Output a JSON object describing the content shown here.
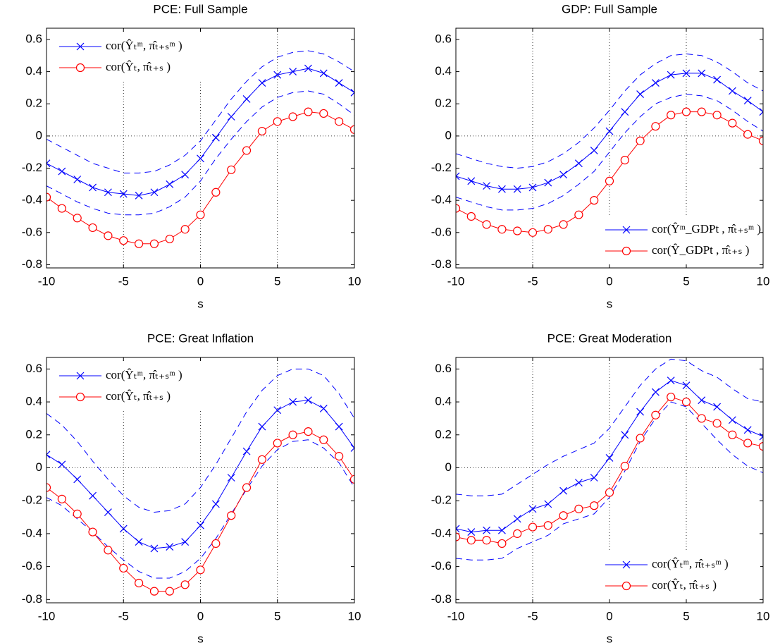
{
  "chart_data": [
    {
      "type": "line",
      "title": "PCE: Full Sample",
      "xlabel": "s",
      "x": [
        -10,
        -9,
        -8,
        -7,
        -6,
        -5,
        -4,
        -3,
        -2,
        -1,
        0,
        1,
        2,
        3,
        4,
        5,
        6,
        7,
        8,
        9,
        10
      ],
      "xlim": [
        -10,
        10
      ],
      "xticks": [
        -10,
        -5,
        0,
        5,
        10
      ],
      "ylim": [
        -0.82,
        0.67
      ],
      "yticks": [
        -0.8,
        -0.6,
        -0.4,
        -0.2,
        0,
        0.2,
        0.4,
        0.6
      ],
      "vlines": [
        -5,
        0,
        5
      ],
      "hlines": [
        0
      ],
      "legend": "upper left",
      "series": [
        {
          "name": "cor(Ŷₜᵐ, π̂ₜ₊ₛᵐ )",
          "color": "#0000ff",
          "marker": "x",
          "values": [
            -0.17,
            -0.22,
            -0.27,
            -0.32,
            -0.35,
            -0.36,
            -0.37,
            -0.35,
            -0.3,
            -0.24,
            -0.14,
            -0.01,
            0.12,
            0.23,
            0.33,
            0.38,
            0.4,
            0.42,
            0.39,
            0.33,
            0.27
          ]
        },
        {
          "name": "cor(Ŷₜ, π̂ₜ₊ₛ )",
          "color": "#ff0000",
          "marker": "o",
          "values": [
            -0.38,
            -0.45,
            -0.51,
            -0.57,
            -0.62,
            -0.65,
            -0.67,
            -0.67,
            -0.64,
            -0.58,
            -0.49,
            -0.35,
            -0.21,
            -0.09,
            0.03,
            0.09,
            0.12,
            0.15,
            0.14,
            0.09,
            0.04
          ]
        }
      ],
      "band": {
        "color": "#0000ff",
        "upper": [
          -0.02,
          -0.07,
          -0.12,
          -0.17,
          -0.2,
          -0.23,
          -0.23,
          -0.22,
          -0.18,
          -0.12,
          -0.03,
          0.1,
          0.23,
          0.34,
          0.43,
          0.49,
          0.52,
          0.53,
          0.51,
          0.46,
          0.4
        ],
        "lower": [
          -0.31,
          -0.36,
          -0.41,
          -0.45,
          -0.48,
          -0.49,
          -0.49,
          -0.48,
          -0.44,
          -0.38,
          -0.28,
          -0.14,
          -0.02,
          0.09,
          0.18,
          0.24,
          0.27,
          0.28,
          0.26,
          0.2,
          0.13
        ]
      }
    },
    {
      "type": "line",
      "title": "GDP: Full Sample",
      "xlabel": "s",
      "x": [
        -10,
        -9,
        -8,
        -7,
        -6,
        -5,
        -4,
        -3,
        -2,
        -1,
        0,
        1,
        2,
        3,
        4,
        5,
        6,
        7,
        8,
        9,
        10
      ],
      "xlim": [
        -10,
        10
      ],
      "xticks": [
        -10,
        -5,
        0,
        5,
        10
      ],
      "ylim": [
        -0.82,
        0.67
      ],
      "yticks": [
        -0.8,
        -0.6,
        -0.4,
        -0.2,
        0,
        0.2,
        0.4,
        0.6
      ],
      "vlines": [
        -5,
        0,
        5
      ],
      "hlines": [
        0
      ],
      "legend": "lower right",
      "series": [
        {
          "name": "cor(Ŷᵐ_GDPt , π̂ₜ₊ₛᵐ )",
          "color": "#0000ff",
          "marker": "x",
          "values": [
            -0.25,
            -0.28,
            -0.31,
            -0.33,
            -0.33,
            -0.32,
            -0.29,
            -0.24,
            -0.17,
            -0.09,
            0.03,
            0.15,
            0.26,
            0.33,
            0.38,
            0.39,
            0.39,
            0.35,
            0.28,
            0.22,
            0.15
          ]
        },
        {
          "name": "cor(Ŷ_GDPt , π̂ₜ₊ₛ )",
          "color": "#ff0000",
          "marker": "o",
          "values": [
            -0.45,
            -0.5,
            -0.55,
            -0.58,
            -0.59,
            -0.6,
            -0.58,
            -0.55,
            -0.49,
            -0.4,
            -0.28,
            -0.15,
            -0.03,
            0.06,
            0.13,
            0.15,
            0.15,
            0.13,
            0.08,
            0.01,
            -0.03
          ]
        }
      ],
      "band": {
        "color": "#0000ff",
        "upper": [
          -0.11,
          -0.14,
          -0.17,
          -0.19,
          -0.2,
          -0.19,
          -0.16,
          -0.11,
          -0.04,
          0.05,
          0.16,
          0.28,
          0.38,
          0.45,
          0.5,
          0.51,
          0.5,
          0.46,
          0.4,
          0.33,
          0.28
        ],
        "lower": [
          -0.38,
          -0.41,
          -0.44,
          -0.46,
          -0.46,
          -0.45,
          -0.42,
          -0.37,
          -0.3,
          -0.22,
          -0.1,
          0.02,
          0.12,
          0.2,
          0.24,
          0.26,
          0.25,
          0.22,
          0.16,
          0.09,
          0.03
        ]
      }
    },
    {
      "type": "line",
      "title": "PCE: Great Inflation",
      "xlabel": "s",
      "x": [
        -10,
        -9,
        -8,
        -7,
        -6,
        -5,
        -4,
        -3,
        -2,
        -1,
        0,
        1,
        2,
        3,
        4,
        5,
        6,
        7,
        8,
        9,
        10
      ],
      "xlim": [
        -10,
        10
      ],
      "xticks": [
        -10,
        -5,
        0,
        5,
        10
      ],
      "ylim": [
        -0.82,
        0.67
      ],
      "yticks": [
        -0.8,
        -0.6,
        -0.4,
        -0.2,
        0,
        0.2,
        0.4,
        0.6
      ],
      "vlines": [
        -5,
        0,
        5
      ],
      "hlines": [
        0
      ],
      "legend": "upper left",
      "series": [
        {
          "name": "cor(Ŷₜᵐ, π̂ₜ₊ₛᵐ )",
          "color": "#0000ff",
          "marker": "x",
          "values": [
            0.08,
            0.02,
            -0.07,
            -0.17,
            -0.27,
            -0.37,
            -0.45,
            -0.49,
            -0.48,
            -0.45,
            -0.35,
            -0.22,
            -0.06,
            0.1,
            0.25,
            0.35,
            0.4,
            0.41,
            0.36,
            0.25,
            0.12
          ]
        },
        {
          "name": "cor(Ŷₜ, π̂ₜ₊ₛ )",
          "color": "#ff0000",
          "marker": "o",
          "values": [
            -0.12,
            -0.19,
            -0.28,
            -0.39,
            -0.5,
            -0.61,
            -0.7,
            -0.75,
            -0.75,
            -0.71,
            -0.62,
            -0.46,
            -0.29,
            -0.12,
            0.05,
            0.15,
            0.2,
            0.22,
            0.17,
            0.07,
            -0.07
          ]
        }
      ],
      "band": {
        "color": "#0000ff",
        "upper": [
          0.33,
          0.26,
          0.16,
          0.04,
          -0.07,
          -0.17,
          -0.24,
          -0.27,
          -0.26,
          -0.22,
          -0.12,
          0.02,
          0.18,
          0.34,
          0.47,
          0.56,
          0.6,
          0.6,
          0.56,
          0.45,
          0.3
        ],
        "lower": [
          -0.18,
          -0.23,
          -0.31,
          -0.39,
          -0.48,
          -0.56,
          -0.63,
          -0.67,
          -0.67,
          -0.63,
          -0.55,
          -0.43,
          -0.28,
          -0.13,
          0.01,
          0.11,
          0.16,
          0.17,
          0.12,
          0.03,
          -0.12
        ]
      }
    },
    {
      "type": "line",
      "title": "PCE: Great Moderation",
      "xlabel": "s",
      "x": [
        -10,
        -9,
        -8,
        -7,
        -6,
        -5,
        -4,
        -3,
        -2,
        -1,
        0,
        1,
        2,
        3,
        4,
        5,
        6,
        7,
        8,
        9,
        10
      ],
      "xlim": [
        -10,
        10
      ],
      "xticks": [
        -10,
        -5,
        0,
        5,
        10
      ],
      "ylim": [
        -0.82,
        0.67
      ],
      "yticks": [
        -0.8,
        -0.6,
        -0.4,
        -0.2,
        0,
        0.2,
        0.4,
        0.6
      ],
      "vlines": [
        -5,
        0,
        5
      ],
      "hlines": [
        0
      ],
      "legend": "lower right",
      "series": [
        {
          "name": "cor(Ŷₜᵐ, π̂ₜ₊ₛᵐ )",
          "color": "#0000ff",
          "marker": "x",
          "values": [
            -0.37,
            -0.39,
            -0.38,
            -0.38,
            -0.31,
            -0.25,
            -0.22,
            -0.14,
            -0.09,
            -0.06,
            0.06,
            0.2,
            0.34,
            0.46,
            0.53,
            0.5,
            0.41,
            0.37,
            0.29,
            0.23,
            0.19
          ]
        },
        {
          "name": "cor(Ŷₜ, π̂ₜ₊ₛ )",
          "color": "#ff0000",
          "marker": "o",
          "values": [
            -0.42,
            -0.44,
            -0.44,
            -0.46,
            -0.4,
            -0.36,
            -0.35,
            -0.29,
            -0.25,
            -0.23,
            -0.15,
            0.01,
            0.18,
            0.32,
            0.43,
            0.4,
            0.3,
            0.27,
            0.2,
            0.15,
            0.13
          ]
        }
      ],
      "band": {
        "color": "#0000ff",
        "upper": [
          -0.16,
          -0.17,
          -0.17,
          -0.16,
          -0.1,
          -0.04,
          0.02,
          0.07,
          0.11,
          0.15,
          0.24,
          0.37,
          0.5,
          0.6,
          0.66,
          0.65,
          0.59,
          0.55,
          0.48,
          0.42,
          0.4
        ],
        "lower": [
          -0.55,
          -0.56,
          -0.56,
          -0.55,
          -0.49,
          -0.45,
          -0.41,
          -0.34,
          -0.31,
          -0.28,
          -0.18,
          -0.02,
          0.16,
          0.3,
          0.4,
          0.37,
          0.27,
          0.17,
          0.08,
          0.01,
          -0.03
        ]
      }
    }
  ]
}
